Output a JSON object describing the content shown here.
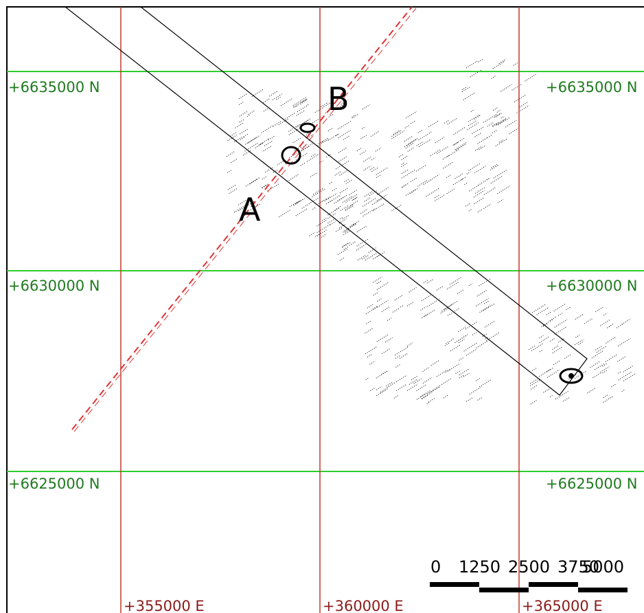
{
  "map": {
    "northing_labels": [
      "+6635000 N",
      "+6630000 N",
      "+6625000 N"
    ],
    "easting_labels": [
      "+355000 E",
      "+360000 E",
      "+365000 E"
    ],
    "point_labels": [
      "A",
      "B"
    ],
    "scale_bar": [
      "0",
      "1250",
      "2500",
      "3750",
      "5000"
    ]
  }
}
